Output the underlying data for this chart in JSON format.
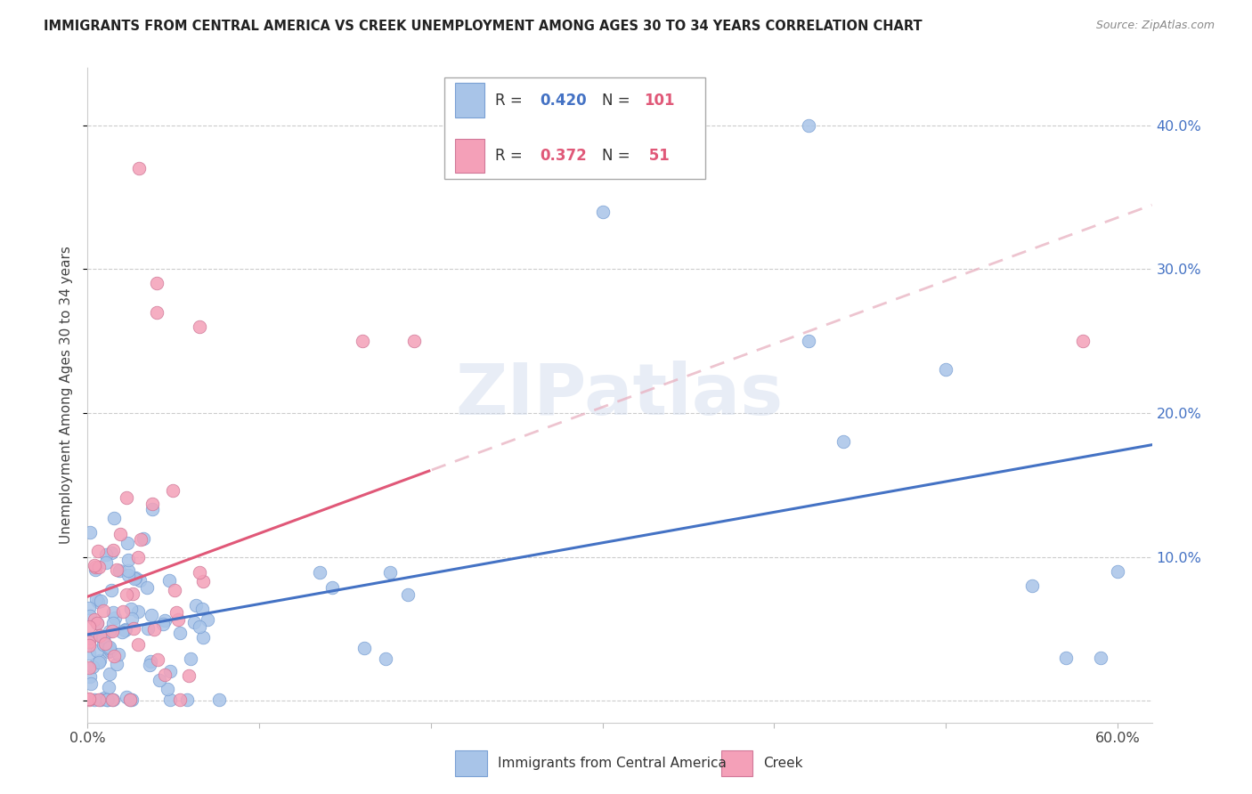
{
  "title": "IMMIGRANTS FROM CENTRAL AMERICA VS CREEK UNEMPLOYMENT AMONG AGES 30 TO 34 YEARS CORRELATION CHART",
  "source": "Source: ZipAtlas.com",
  "ylabel": "Unemployment Among Ages 30 to 34 years",
  "xlim": [
    0.0,
    0.62
  ],
  "ylim": [
    -0.015,
    0.44
  ],
  "legend_blue_r": "0.420",
  "legend_blue_n": "101",
  "legend_pink_r": "0.372",
  "legend_pink_n": "51",
  "blue_color": "#a8c4e8",
  "blue_line_color": "#4472c4",
  "pink_color": "#f4a0b8",
  "pink_line_color": "#e05878",
  "pink_dash_color": "#e8b0c0",
  "watermark": "ZIPatlas",
  "blue_seed": 7,
  "pink_seed": 13
}
